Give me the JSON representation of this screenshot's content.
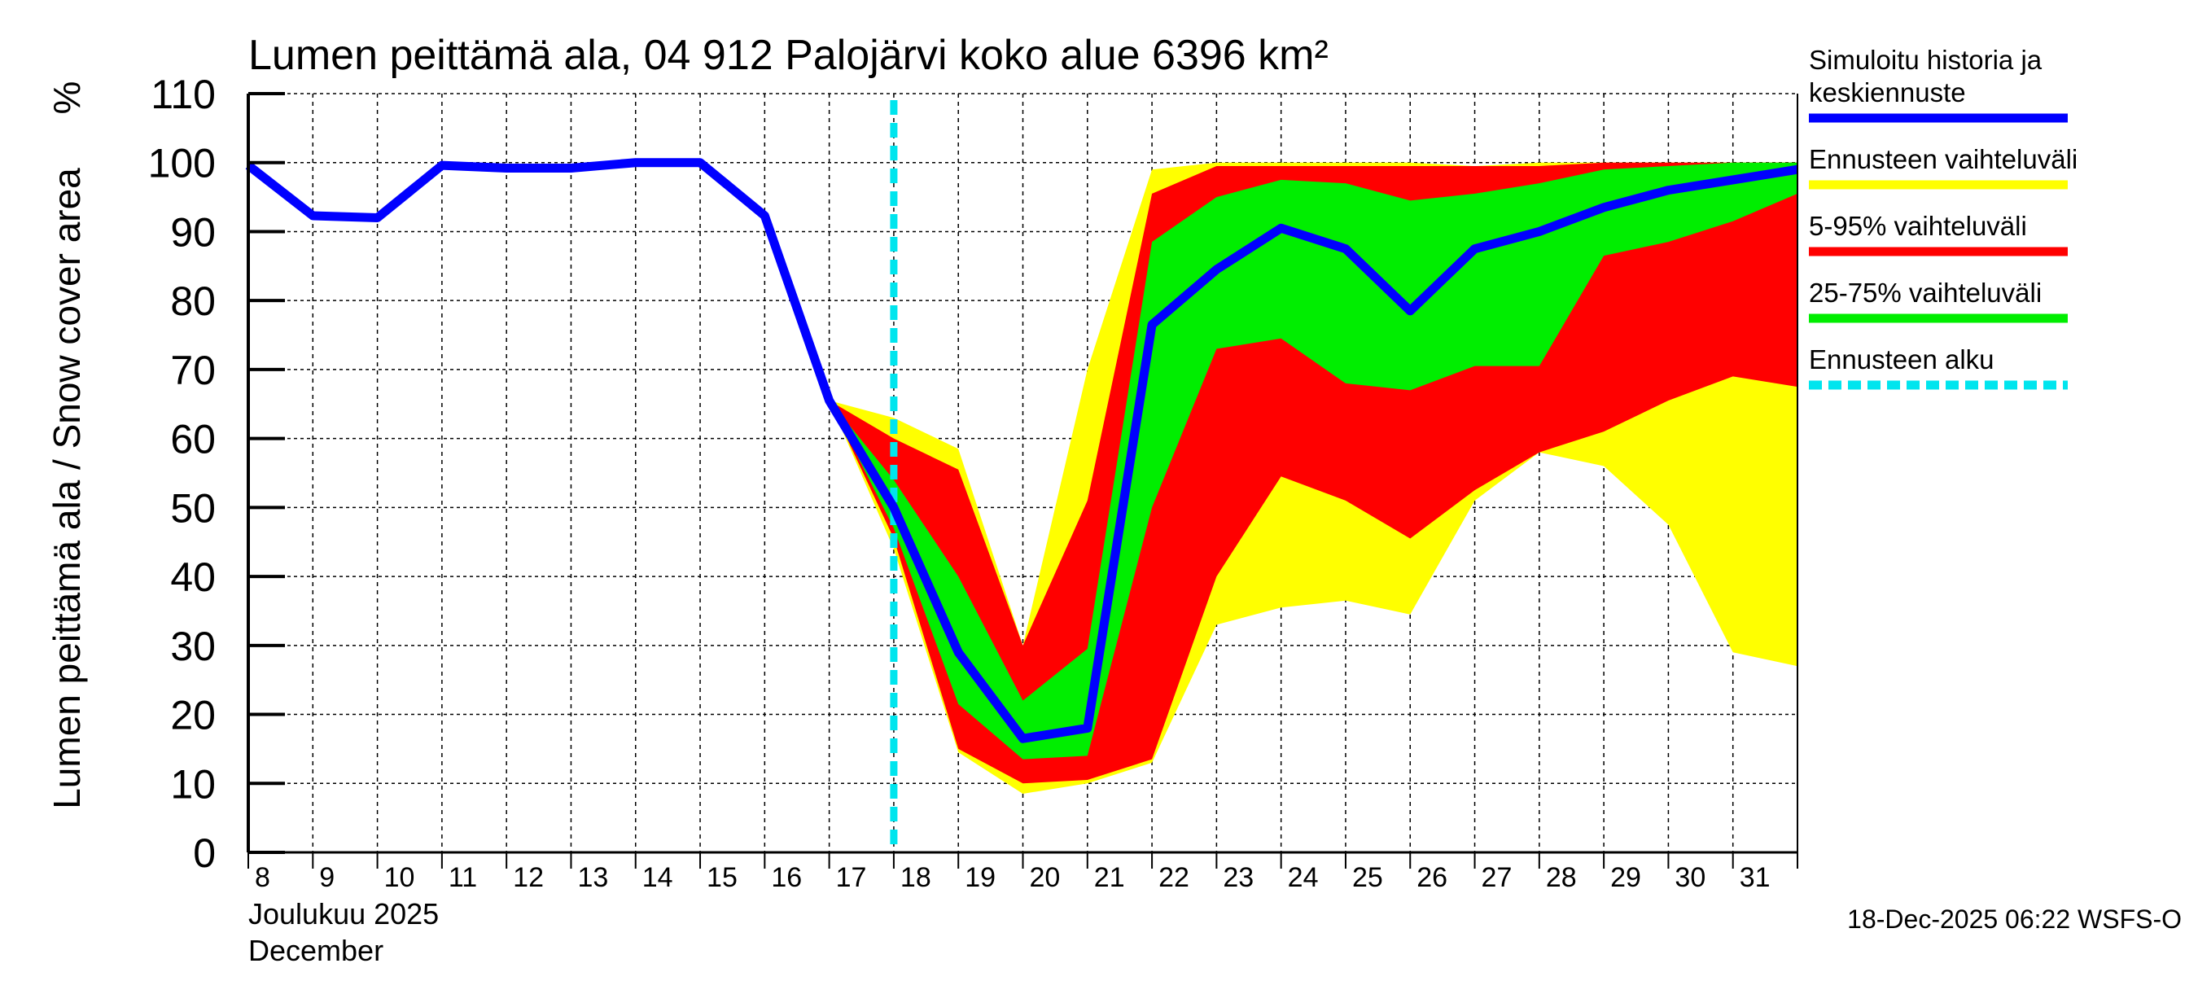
{
  "chart_data": {
    "type": "area",
    "title": "Lumen peittämä ala, 04 912 Palojärvi koko alue 6396 km²",
    "ylabel": "Lumen peittämä ala / Snow cover area",
    "yunit": "%",
    "xlabel_fi": "Joulukuu  2025",
    "xlabel_en": "December",
    "ylim": [
      0,
      110
    ],
    "yticks": [
      0,
      10,
      20,
      30,
      40,
      50,
      60,
      70,
      80,
      90,
      100,
      110
    ],
    "x_days": [
      8,
      9,
      10,
      11,
      12,
      13,
      14,
      15,
      16,
      17,
      18,
      19,
      20,
      21,
      22,
      23,
      24,
      25,
      26,
      27,
      28,
      29,
      30,
      31,
      32
    ],
    "x_tick_labels": [
      "8",
      "9",
      "10",
      "11",
      "12",
      "13",
      "14",
      "15",
      "16",
      "17",
      "18",
      "19",
      "20",
      "21",
      "22",
      "23",
      "24",
      "25",
      "26",
      "27",
      "28",
      "29",
      "30",
      "31"
    ],
    "grid": true,
    "forecast_start_day": 18,
    "band_days": [
      17,
      18,
      19,
      20,
      21,
      22,
      23,
      24,
      25,
      26,
      27,
      28,
      29,
      30,
      31,
      32
    ],
    "series": [
      {
        "name": "Simuloitu historia ja keskiennuste",
        "color": "#0000ff",
        "type": "line",
        "values": [
          99.6,
          92.3,
          92,
          99.6,
          99.2,
          99.2,
          100,
          100,
          92.3,
          65.5,
          50,
          29,
          16.5,
          18,
          76.5,
          84.5,
          90.5,
          87.5,
          78.5,
          87.5,
          90,
          93.5,
          96,
          97.5,
          99
        ]
      },
      {
        "name": "Ennusteen vaihteluväli",
        "color": "#ffff00",
        "type": "band",
        "upper": [
          65.5,
          63,
          58.5,
          30,
          70,
          99,
          100,
          100,
          100,
          100,
          99.5,
          100,
          100,
          100,
          100,
          100
        ],
        "lower": [
          65.5,
          44,
          14.5,
          8.5,
          10,
          13,
          33,
          35.5,
          36.5,
          34.5,
          51,
          58,
          56,
          47.5,
          29,
          27
        ]
      },
      {
        "name": "5-95% vaihteluväli",
        "color": "#ff0000",
        "type": "band",
        "upper": [
          65.5,
          60,
          55.5,
          30,
          51,
          95.5,
          99.5,
          99.5,
          99.5,
          99.5,
          99.5,
          99.5,
          100,
          100,
          100,
          100
        ],
        "lower": [
          65.5,
          45.5,
          15,
          10,
          10.5,
          13.5,
          40,
          54.5,
          51,
          45.5,
          52.5,
          58,
          61,
          65.5,
          69,
          67.5
        ]
      },
      {
        "name": "25-75% vaihteluväli",
        "color": "#00ee00",
        "type": "band",
        "upper": [
          65.5,
          54,
          40,
          22,
          29.5,
          88.5,
          95,
          97.5,
          97,
          94.5,
          95.5,
          97,
          99,
          99.5,
          100,
          100
        ],
        "lower": [
          65.5,
          47,
          21.5,
          13.5,
          14,
          50,
          73,
          74.5,
          68,
          67,
          70.5,
          70.5,
          86.5,
          88.5,
          91.5,
          95.5
        ]
      }
    ],
    "legend": {
      "placement": "right",
      "items": [
        {
          "label_lines": [
            "Simuloitu historia ja",
            "keskiennuste"
          ],
          "color": "#0000ff",
          "style": "solid"
        },
        {
          "label_lines": [
            "Ennusteen vaihteluväli"
          ],
          "color": "#ffff00",
          "style": "solid"
        },
        {
          "label_lines": [
            "5-95% vaihteluväli"
          ],
          "color": "#ff0000",
          "style": "solid"
        },
        {
          "label_lines": [
            "25-75% vaihteluväli"
          ],
          "color": "#00ee00",
          "style": "solid"
        },
        {
          "label_lines": [
            "Ennusteen alku"
          ],
          "color": "#00e5ee",
          "style": "dashed"
        }
      ]
    },
    "footer": "18-Dec-2025 06:22 WSFS-O"
  }
}
